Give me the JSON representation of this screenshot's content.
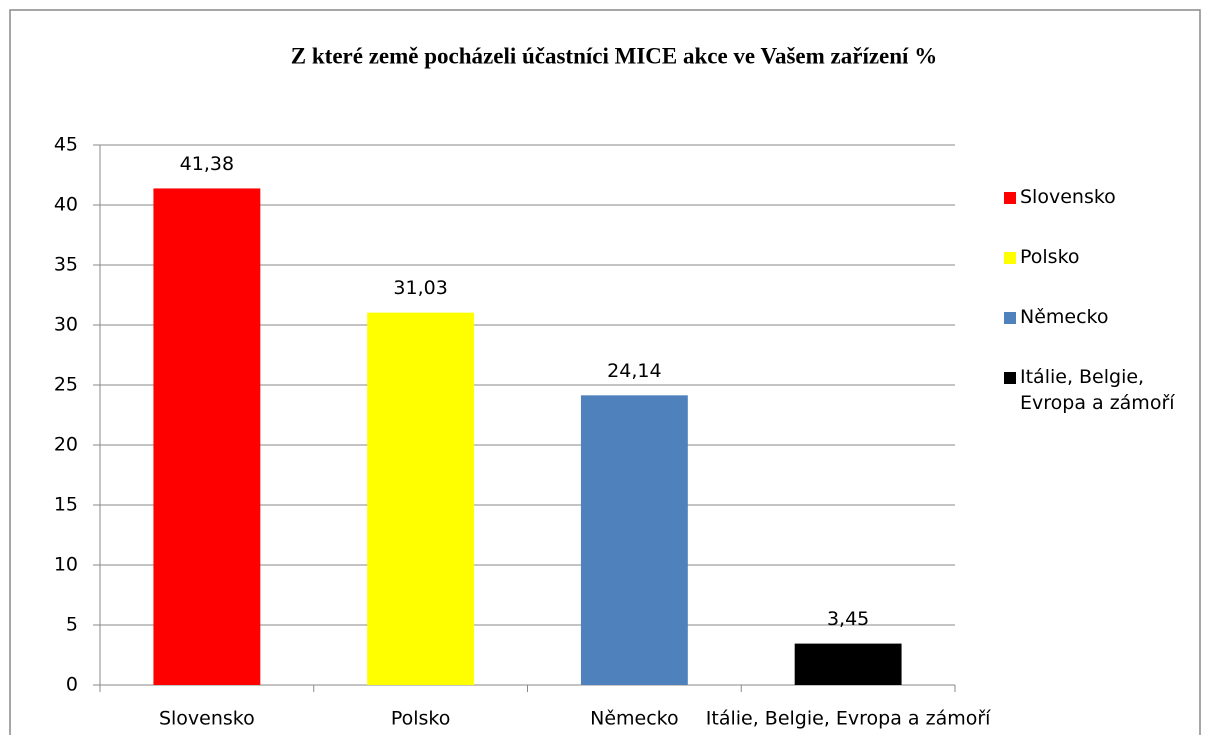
{
  "chart_data": {
    "type": "bar",
    "title": "Z které země pocházeli účastníci MICE akce ve Vašem zařízení   %",
    "categories": [
      "Slovensko",
      "Polsko",
      "Německo",
      "Itálie, Belgie, Evropa a zámoří"
    ],
    "values": [
      41.38,
      31.03,
      24.14,
      3.45
    ],
    "value_labels": [
      "41,38",
      "31,03",
      "24,14",
      "3,45"
    ],
    "colors": [
      "#ff0000",
      "#ffff00",
      "#4f81bd",
      "#000000"
    ],
    "ylim": [
      0,
      45
    ],
    "yticks": [
      0,
      5,
      10,
      15,
      20,
      25,
      30,
      35,
      40,
      45
    ],
    "grid": true,
    "legend": "right"
  }
}
